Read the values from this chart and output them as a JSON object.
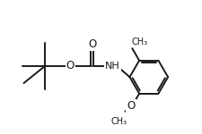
{
  "bg_color": "#ffffff",
  "line_color": "#1a1a1a",
  "line_width": 1.4,
  "font_size": 7.5,
  "fig_width": 2.26,
  "fig_height": 1.5,
  "dpi": 100,
  "xlim": [
    0,
    10
  ],
  "ylim": [
    0,
    6.5
  ]
}
